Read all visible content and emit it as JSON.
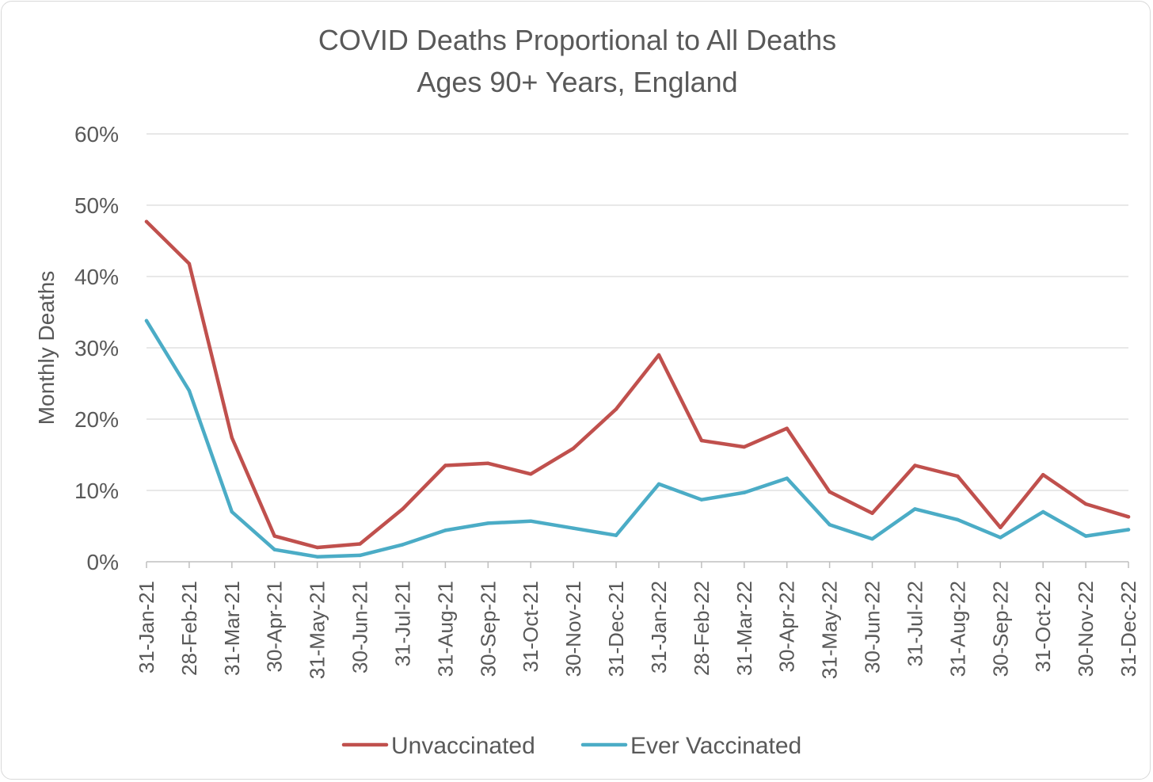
{
  "chart_data": {
    "type": "line",
    "title": "COVID Deaths Proportional to All Deaths",
    "subtitle": "Ages 90+ Years, England",
    "ylabel": "Monthly Deaths",
    "xlabel": "",
    "ylim": [
      0,
      0.6
    ],
    "yticks": [
      0,
      0.1,
      0.2,
      0.3,
      0.4,
      0.5,
      0.6
    ],
    "ytick_labels": [
      "0%",
      "10%",
      "20%",
      "30%",
      "40%",
      "50%",
      "60%"
    ],
    "grid": true,
    "legend_position": "bottom",
    "categories": [
      "31-Jan-21",
      "28-Feb-21",
      "31-Mar-21",
      "30-Apr-21",
      "31-May-21",
      "30-Jun-21",
      "31-Jul-21",
      "31-Aug-21",
      "30-Sep-21",
      "31-Oct-21",
      "30-Nov-21",
      "31-Dec-21",
      "31-Jan-22",
      "28-Feb-22",
      "31-Mar-22",
      "30-Apr-22",
      "31-May-22",
      "30-Jun-22",
      "31-Jul-22",
      "31-Aug-22",
      "30-Sep-22",
      "31-Oct-22",
      "30-Nov-22",
      "31-Dec-22"
    ],
    "series": [
      {
        "name": "Unvaccinated",
        "color": "#c0504d",
        "values": [
          0.477,
          0.418,
          0.174,
          0.036,
          0.02,
          0.025,
          0.074,
          0.135,
          0.138,
          0.123,
          0.159,
          0.214,
          0.29,
          0.17,
          0.161,
          0.187,
          0.098,
          0.068,
          0.135,
          0.12,
          0.048,
          0.122,
          0.081,
          0.063
        ]
      },
      {
        "name": "Ever Vaccinated",
        "color": "#4bacc6",
        "values": [
          0.338,
          0.24,
          0.07,
          0.017,
          0.007,
          0.009,
          0.024,
          0.044,
          0.054,
          0.057,
          0.047,
          0.037,
          0.109,
          0.087,
          0.097,
          0.117,
          0.052,
          0.032,
          0.074,
          0.059,
          0.034,
          0.07,
          0.036,
          0.045
        ]
      }
    ]
  }
}
